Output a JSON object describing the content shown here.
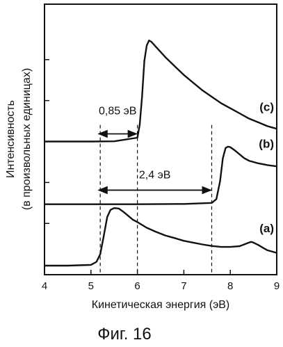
{
  "chart_data": {
    "type": "line",
    "xlabel": "Кинетическая энергия (эВ)",
    "ylabel": "Интенсивность",
    "ylabel_line2": "(в произвольных единицах)",
    "xlim": [
      4,
      9
    ],
    "xticks": [
      "4",
      "5",
      "6",
      "7",
      "8",
      "9"
    ],
    "xtick_values": [
      4,
      5,
      6,
      7,
      8,
      9
    ],
    "ylim": [
      0,
      100
    ],
    "yticks_shown_without_labels": [
      16.5,
      32.5,
      48.5,
      64.5,
      80.5
    ],
    "grid": false,
    "series": [
      {
        "name": "(a)",
        "x": [
          4.0,
          4.5,
          5.0,
          5.12,
          5.2,
          5.27,
          5.35,
          5.42,
          5.5,
          5.6,
          5.7,
          5.8,
          5.9,
          6.0,
          6.2,
          6.4,
          6.6,
          6.8,
          7.0,
          7.2,
          7.4,
          7.6,
          7.8,
          8.0,
          8.2,
          8.3,
          8.4,
          8.45,
          8.5,
          8.6,
          8.7,
          8.8,
          9.0
        ],
        "y": [
          0.0,
          0.0,
          0.3,
          1.5,
          4.5,
          11.0,
          19.0,
          21.8,
          22.5,
          22.3,
          21.0,
          19.5,
          18.0,
          17.0,
          14.8,
          13.2,
          11.8,
          10.8,
          9.7,
          9.0,
          8.3,
          7.7,
          7.3,
          7.3,
          7.6,
          8.3,
          9.0,
          9.3,
          9.0,
          8.1,
          7.0,
          6.0,
          5.0
        ]
      },
      {
        "name": "(b)",
        "x": [
          4.0,
          5.0,
          6.0,
          7.0,
          7.6,
          7.7,
          7.78,
          7.84,
          7.9,
          7.95,
          8.0,
          8.1,
          8.2,
          8.3,
          8.4,
          8.5,
          8.6,
          8.8,
          9.0
        ],
        "y": [
          24.0,
          24.0,
          24.0,
          24.1,
          24.5,
          26.0,
          33.0,
          42.0,
          46.0,
          46.5,
          46.3,
          45.0,
          43.5,
          42.0,
          41.0,
          40.5,
          40.0,
          39.3,
          38.8
        ]
      },
      {
        "name": "(c)",
        "x": [
          4.0,
          5.0,
          5.5,
          6.0,
          6.05,
          6.1,
          6.15,
          6.2,
          6.25,
          6.3,
          6.35,
          6.4,
          6.5,
          6.6,
          6.8,
          7.0,
          7.2,
          7.4,
          7.6,
          7.8,
          8.0,
          8.2,
          8.4,
          8.6,
          8.8,
          8.9,
          9.0
        ],
        "y": [
          48.5,
          48.5,
          48.6,
          50.0,
          55.0,
          66.0,
          80.0,
          86.0,
          88.0,
          87.5,
          86.5,
          85.5,
          83.5,
          81.5,
          78.0,
          74.5,
          71.5,
          68.5,
          66.0,
          63.5,
          61.5,
          59.5,
          57.5,
          56.0,
          54.5,
          54.0,
          53.5
        ]
      }
    ],
    "annotations": {
      "dashed_lines_x": [
        5.2,
        6.0,
        7.6
      ],
      "span_small": {
        "label": "0,85 эВ",
        "x_from": 5.15,
        "x_to": 6.0,
        "y": 51.5
      },
      "span_large": {
        "label": "2,4 эВ",
        "x_from": 5.15,
        "x_to": 7.6,
        "y": 29.5
      }
    },
    "caption": "Фиг. 16"
  }
}
